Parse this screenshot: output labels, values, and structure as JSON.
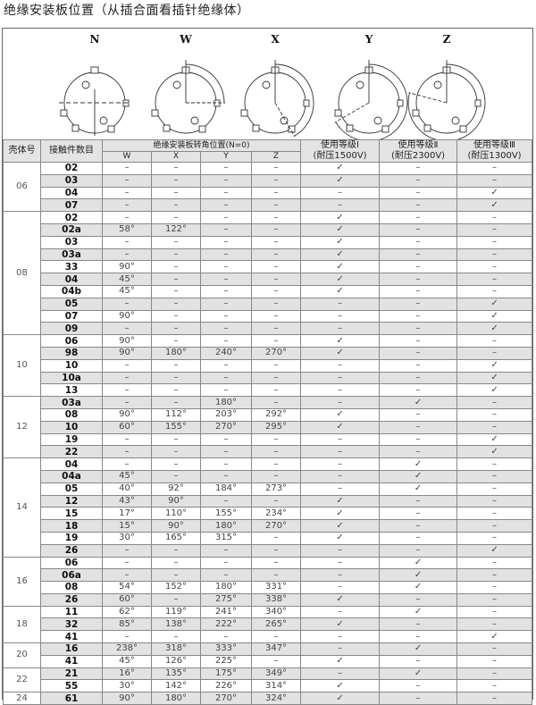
{
  "title": "绝缘安装板位置（从插合面看插针绝缘体）",
  "diagram_labels": [
    "N",
    "W",
    "X",
    "Y",
    "Z"
  ],
  "headers": {
    "shell": "壳体号",
    "contacts": "接触件数目",
    "rotation": "绝缘安装板转角位置(N=0)",
    "cols": [
      "W",
      "X",
      "Y",
      "Z"
    ],
    "class1": "使用等级Ⅰ",
    "class1_sub": "(耐压1500V)",
    "class2": "使用等级Ⅱ",
    "class2_sub": "(耐压2300V)",
    "class3": "使用等级Ⅲ",
    "class3_sub": "(耐压1300V)"
  },
  "groups": [
    {
      "shell": "06",
      "rows": [
        [
          "02",
          "–",
          "–",
          "–",
          "–",
          "✓",
          "–",
          "–"
        ],
        [
          "03",
          "–",
          "–",
          "–",
          "–",
          "✓",
          "–",
          "–"
        ],
        [
          "04",
          "–",
          "–",
          "–",
          "–",
          "–",
          "–",
          "✓"
        ],
        [
          "07",
          "–",
          "–",
          "–",
          "–",
          "–",
          "–",
          "✓"
        ]
      ]
    },
    {
      "shell": "08",
      "rows": [
        [
          "02",
          "–",
          "–",
          "–",
          "–",
          "✓",
          "–",
          "–"
        ],
        [
          "02a",
          "58°",
          "122°",
          "–",
          "–",
          "✓",
          "–",
          "–"
        ],
        [
          "03",
          "–",
          "–",
          "–",
          "–",
          "✓",
          "–",
          "–"
        ],
        [
          "03a",
          "–",
          "–",
          "–",
          "–",
          "✓",
          "–",
          "–"
        ],
        [
          "33",
          "90°",
          "–",
          "–",
          "–",
          "✓",
          "–",
          "–"
        ],
        [
          "04",
          "45°",
          "–",
          "–",
          "–",
          "✓",
          "–",
          "–"
        ],
        [
          "04b",
          "45°",
          "–",
          "–",
          "–",
          "✓",
          "–",
          "–"
        ],
        [
          "05",
          "–",
          "–",
          "–",
          "–",
          "–",
          "–",
          "✓"
        ],
        [
          "07",
          "90°",
          "–",
          "–",
          "–",
          "–",
          "–",
          "✓"
        ],
        [
          "09",
          "–",
          "–",
          "–",
          "–",
          "–",
          "–",
          "✓"
        ]
      ]
    },
    {
      "shell": "10",
      "rows": [
        [
          "06",
          "90°",
          "–",
          "–",
          "–",
          "✓",
          "–",
          "–"
        ],
        [
          "98",
          "90°",
          "180°",
          "240°",
          "270°",
          "✓",
          "–",
          "–"
        ],
        [
          "10",
          "–",
          "–",
          "–",
          "–",
          "–",
          "–",
          "✓"
        ],
        [
          "10a",
          "–",
          "–",
          "–",
          "–",
          "–",
          "–",
          "✓"
        ],
        [
          "13",
          "–",
          "–",
          "–",
          "–",
          "–",
          "–",
          "✓"
        ]
      ]
    },
    {
      "shell": "12",
      "rows": [
        [
          "03a",
          "–",
          "–",
          "180°",
          "–",
          "–",
          "✓",
          "–"
        ],
        [
          "08",
          "90°",
          "112°",
          "203°",
          "292°",
          "✓",
          "–",
          "–"
        ],
        [
          "10",
          "60°",
          "155°",
          "270°",
          "295°",
          "✓",
          "–",
          "–"
        ],
        [
          "19",
          "–",
          "–",
          "–",
          "–",
          "–",
          "–",
          "✓"
        ],
        [
          "22",
          "–",
          "–",
          "–",
          "–",
          "–",
          "–",
          "✓"
        ]
      ]
    },
    {
      "shell": "14",
      "rows": [
        [
          "04",
          "–",
          "–",
          "–",
          "–",
          "–",
          "✓",
          "–"
        ],
        [
          "04a",
          "45°",
          "–",
          "–",
          "–",
          "–",
          "✓",
          "–"
        ],
        [
          "05",
          "40°",
          "92°",
          "184°",
          "273°",
          "–",
          "✓",
          "–"
        ],
        [
          "12",
          "43°",
          "90°",
          "–",
          "–",
          "✓",
          "–",
          "–"
        ],
        [
          "15",
          "17°",
          "110°",
          "155°",
          "234°",
          "✓",
          "–",
          "–"
        ],
        [
          "18",
          "15°",
          "90°",
          "180°",
          "270°",
          "✓",
          "–",
          "–"
        ],
        [
          "19",
          "30°",
          "165°",
          "315°",
          "–",
          "✓",
          "–",
          "–"
        ],
        [
          "26",
          "–",
          "–",
          "–",
          "–",
          "–",
          "–",
          "✓"
        ]
      ]
    },
    {
      "shell": "16",
      "rows": [
        [
          "06",
          "–",
          "–",
          "–",
          "–",
          "–",
          "✓",
          "–"
        ],
        [
          "06a",
          "–",
          "–",
          "–",
          "–",
          "–",
          "✓",
          "–"
        ],
        [
          "08",
          "54°",
          "152°",
          "180°",
          "331°",
          "–",
          "✓",
          "–"
        ],
        [
          "26",
          "60°",
          "–",
          "275°",
          "338°",
          "✓",
          "–",
          "–"
        ]
      ]
    },
    {
      "shell": "18",
      "rows": [
        [
          "11",
          "62°",
          "119°",
          "241°",
          "340°",
          "–",
          "✓",
          "–"
        ],
        [
          "32",
          "85°",
          "138°",
          "222°",
          "265°",
          "✓",
          "–",
          "–"
        ],
        [
          "41",
          "–",
          "–",
          "–",
          "–",
          "–",
          "–",
          "✓"
        ]
      ]
    },
    {
      "shell": "20",
      "rows": [
        [
          "16",
          "238°",
          "318°",
          "333°",
          "347°",
          "–",
          "✓",
          "–"
        ],
        [
          "41",
          "45°",
          "126°",
          "225°",
          "–",
          "✓",
          "–",
          "–"
        ]
      ]
    },
    {
      "shell": "22",
      "rows": [
        [
          "21",
          "16°",
          "135°",
          "175°",
          "349°",
          "–",
          "✓",
          "–"
        ],
        [
          "55",
          "30°",
          "142°",
          "226°",
          "314°",
          "✓",
          "–",
          "–"
        ]
      ]
    },
    {
      "shell": "24",
      "rows": [
        [
          "61",
          "90°",
          "180°",
          "270°",
          "324°",
          "✓",
          "–",
          "–"
        ]
      ]
    }
  ]
}
